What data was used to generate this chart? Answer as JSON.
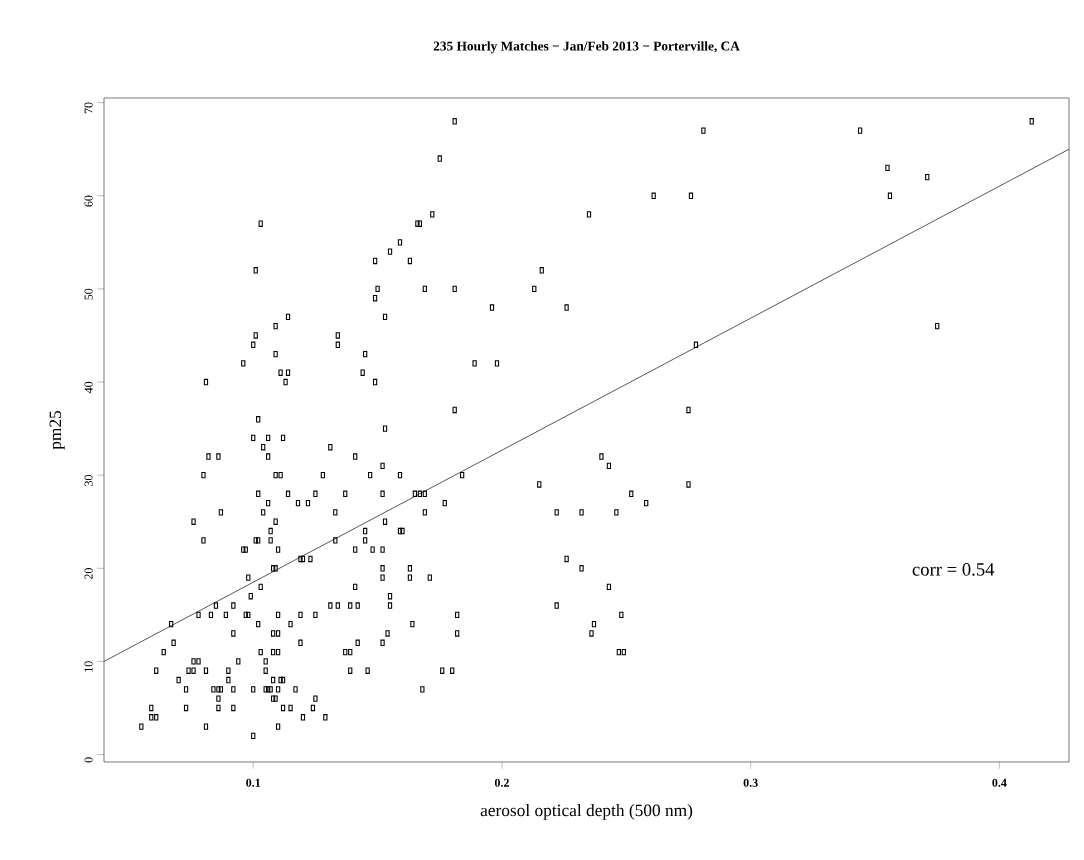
{
  "chart_data": {
    "type": "scatter",
    "title": "235 Hourly Matches − Jan/Feb 2013 − Porterville, CA",
    "xlabel": "aerosol optical depth (500 nm)",
    "ylabel": "pm25",
    "xlim": [
      0.04,
      0.428
    ],
    "ylim": [
      -0.8,
      70.5
    ],
    "xticks": [
      0.1,
      0.2,
      0.3,
      0.4
    ],
    "yticks": [
      0,
      10,
      20,
      30,
      40,
      50,
      60,
      70
    ],
    "marker": "square",
    "annotations": [
      "corr = 0.54"
    ],
    "series": [
      {
        "color": "#000000",
        "x": [
          0.181,
          0.413,
          0.281,
          0.344,
          0.175,
          0.355,
          0.371,
          0.261,
          0.276,
          0.356,
          0.172,
          0.235,
          0.103,
          0.166,
          0.167,
          0.159,
          0.155,
          0.149,
          0.163,
          0.101,
          0.216,
          0.15,
          0.169,
          0.181,
          0.213,
          0.149,
          0.196,
          0.226,
          0.153,
          0.114,
          0.109,
          0.375,
          0.101,
          0.134,
          0.1,
          0.134,
          0.278,
          0.109,
          0.145,
          0.096,
          0.189,
          0.198,
          0.111,
          0.114,
          0.144,
          0.081,
          0.113,
          0.149,
          0.181,
          0.275,
          0.102,
          0.153,
          0.1,
          0.106,
          0.112,
          0.104,
          0.131,
          0.082,
          0.086,
          0.106,
          0.141,
          0.24,
          0.152,
          0.243,
          0.08,
          0.109,
          0.111,
          0.128,
          0.147,
          0.159,
          0.184,
          0.215,
          0.275,
          0.102,
          0.114,
          0.125,
          0.137,
          0.152,
          0.165,
          0.167,
          0.169,
          0.252,
          0.106,
          0.118,
          0.122,
          0.177,
          0.258,
          0.087,
          0.104,
          0.133,
          0.169,
          0.222,
          0.232,
          0.246,
          0.076,
          0.109,
          0.153,
          0.107,
          0.145,
          0.159,
          0.16,
          0.08,
          0.101,
          0.102,
          0.107,
          0.133,
          0.145,
          0.096,
          0.097,
          0.11,
          0.141,
          0.148,
          0.152,
          0.119,
          0.12,
          0.123,
          0.226,
          0.108,
          0.109,
          0.152,
          0.163,
          0.232,
          0.098,
          0.152,
          0.163,
          0.171,
          0.103,
          0.141,
          0.243,
          0.099,
          0.155,
          0.085,
          0.092,
          0.131,
          0.134,
          0.139,
          0.142,
          0.155,
          0.222,
          0.078,
          0.083,
          0.089,
          0.097,
          0.098,
          0.11,
          0.119,
          0.125,
          0.182,
          0.248,
          0.067,
          0.102,
          0.115,
          0.164,
          0.237,
          0.092,
          0.108,
          0.11,
          0.154,
          0.182,
          0.236,
          0.068,
          0.119,
          0.142,
          0.152,
          0.064,
          0.103,
          0.108,
          0.11,
          0.137,
          0.139,
          0.247,
          0.249,
          0.076,
          0.078,
          0.094,
          0.105,
          0.061,
          0.074,
          0.076,
          0.081,
          0.09,
          0.105,
          0.139,
          0.146,
          0.176,
          0.18,
          0.07,
          0.09,
          0.108,
          0.111,
          0.112,
          0.073,
          0.084,
          0.086,
          0.087,
          0.092,
          0.1,
          0.105,
          0.106,
          0.107,
          0.11,
          0.117,
          0.168,
          0.086,
          0.108,
          0.109,
          0.125,
          0.059,
          0.073,
          0.086,
          0.092,
          0.112,
          0.115,
          0.124,
          0.059,
          0.061,
          0.12,
          0.129,
          0.055,
          0.081,
          0.11,
          0.1
        ],
        "values": [
          68,
          68,
          67,
          67,
          64,
          63,
          62,
          60,
          60,
          60,
          58,
          58,
          57,
          57,
          57,
          55,
          54,
          53,
          53,
          52,
          52,
          50,
          50,
          50,
          50,
          49,
          48,
          48,
          47,
          47,
          46,
          46,
          45,
          45,
          44,
          44,
          44,
          43,
          43,
          42,
          42,
          42,
          41,
          41,
          41,
          40,
          40,
          40,
          37,
          37,
          36,
          35,
          34,
          34,
          34,
          33,
          33,
          32,
          32,
          32,
          32,
          32,
          31,
          31,
          30,
          30,
          30,
          30,
          30,
          30,
          30,
          29,
          29,
          28,
          28,
          28,
          28,
          28,
          28,
          28,
          28,
          28,
          27,
          27,
          27,
          27,
          27,
          26,
          26,
          26,
          26,
          26,
          26,
          26,
          25,
          25,
          25,
          24,
          24,
          24,
          24,
          23,
          23,
          23,
          23,
          23,
          23,
          22,
          22,
          22,
          22,
          22,
          22,
          21,
          21,
          21,
          21,
          20,
          20,
          20,
          20,
          20,
          19,
          19,
          19,
          19,
          18,
          18,
          18,
          17,
          17,
          16,
          16,
          16,
          16,
          16,
          16,
          16,
          16,
          15,
          15,
          15,
          15,
          15,
          15,
          15,
          15,
          15,
          15,
          14,
          14,
          14,
          14,
          14,
          13,
          13,
          13,
          13,
          13,
          13,
          12,
          12,
          12,
          12,
          11,
          11,
          11,
          11,
          11,
          11,
          11,
          11,
          10,
          10,
          10,
          10,
          9,
          9,
          9,
          9,
          9,
          9,
          9,
          9,
          9,
          9,
          8,
          8,
          8,
          8,
          8,
          7,
          7,
          7,
          7,
          7,
          7,
          7,
          7,
          7,
          7,
          7,
          7,
          6,
          6,
          6,
          6,
          5,
          5,
          5,
          5,
          5,
          5,
          5,
          4,
          4,
          4,
          4,
          3,
          3,
          3,
          2
        ]
      },
      {
        "type": "line",
        "color": "#000000",
        "marker": "none",
        "x": [
          0.04,
          0.428
        ],
        "values": [
          10,
          65
        ]
      }
    ]
  }
}
